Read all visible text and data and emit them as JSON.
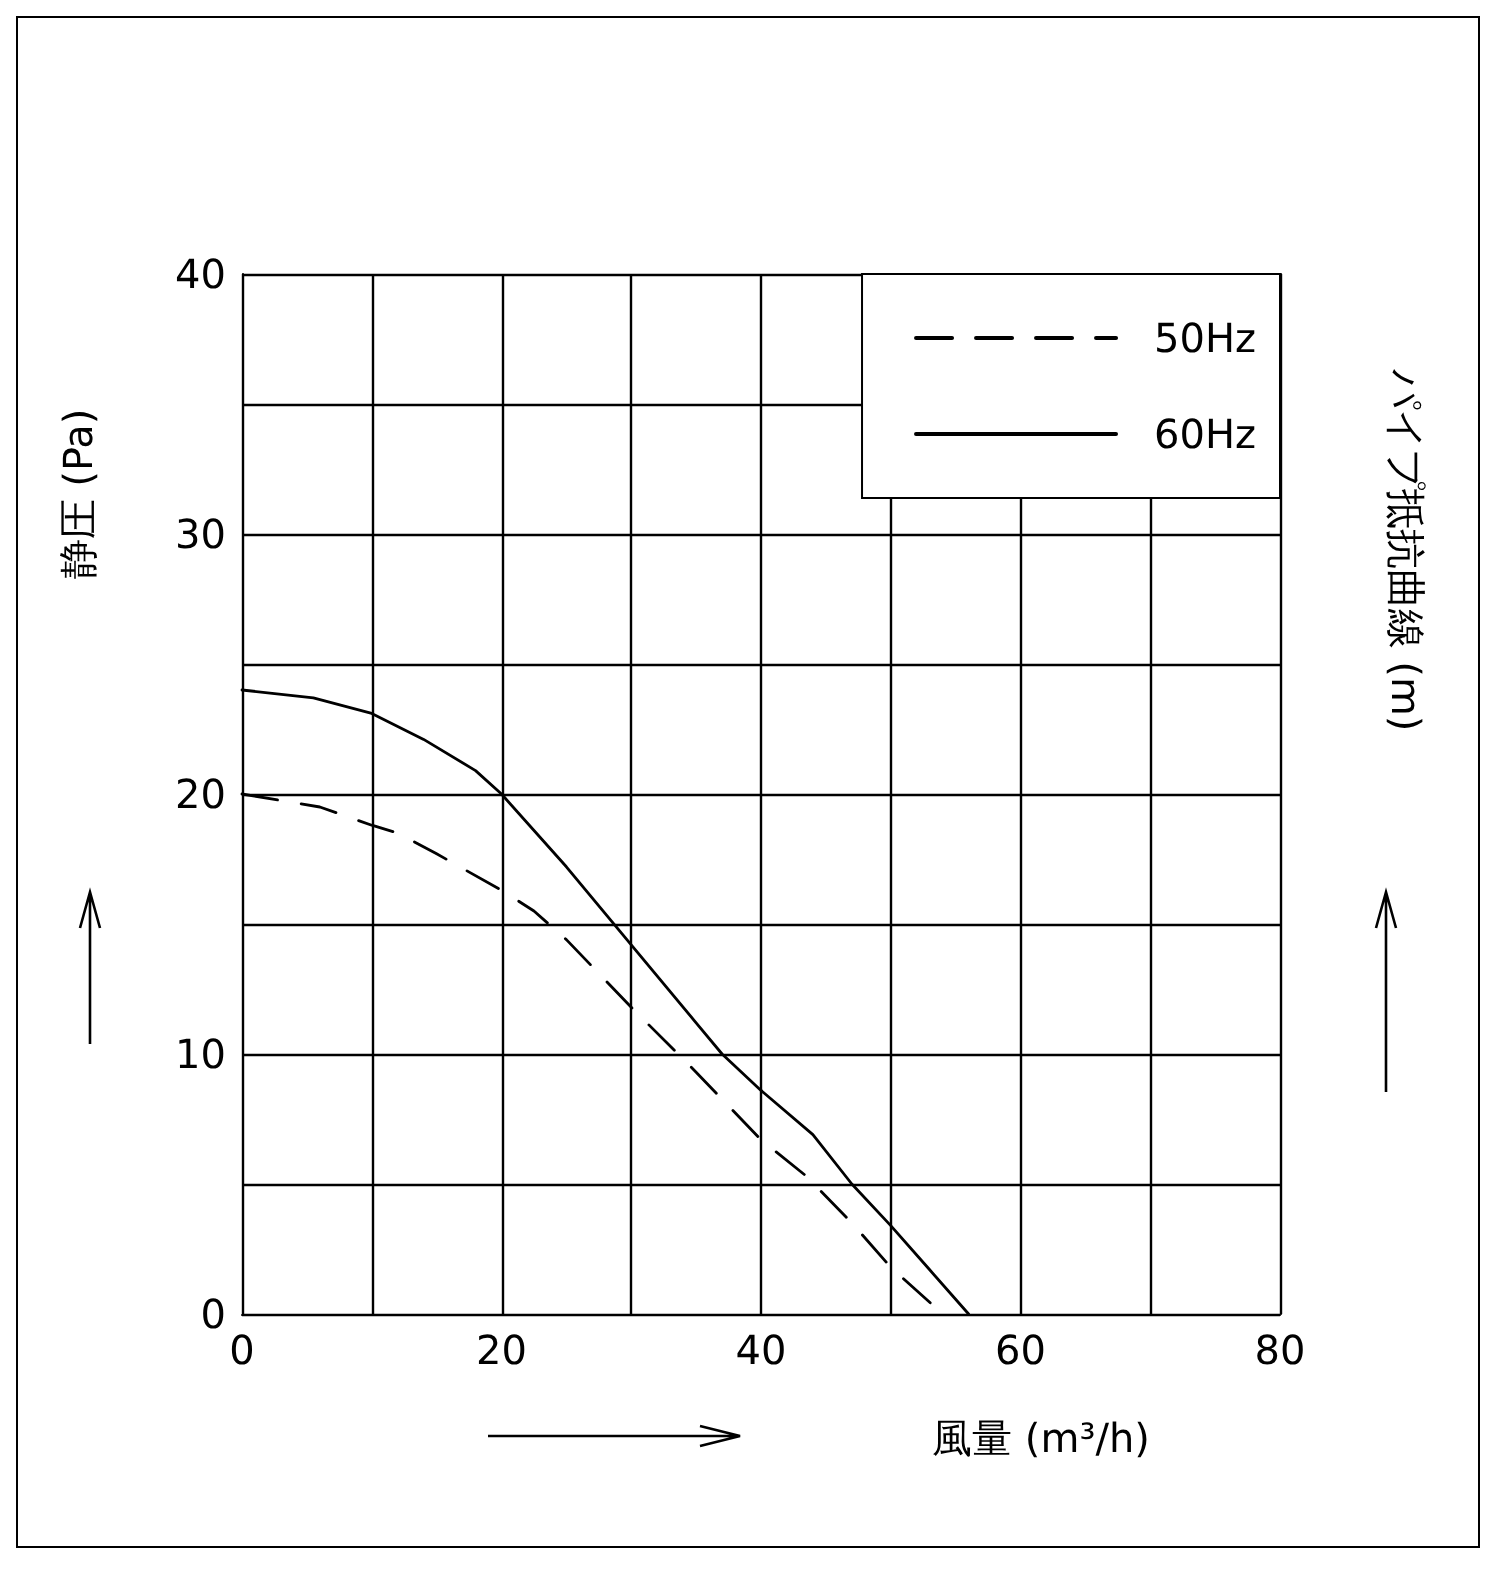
{
  "chart_data": {
    "type": "line",
    "xlabel": "風量 (m³/h)",
    "ylabel": "静圧 (Pa)",
    "y2label": "パイプ抵抗曲線 (m)",
    "xlim": [
      0,
      80
    ],
    "xticks": [
      0,
      {
        "value": 10,
        "label": null
      },
      20,
      {
        "value": 30,
        "label": null
      },
      40,
      {
        "value": 50,
        "label": null
      },
      60,
      {
        "value": 70,
        "label": null
      },
      80
    ],
    "ylim": [
      0,
      40
    ],
    "yticks": [
      0,
      {
        "value": 5,
        "label": null
      },
      10,
      {
        "value": 15,
        "label": null
      },
      20,
      {
        "value": 25,
        "label": null
      },
      30,
      {
        "value": 35,
        "label": null
      },
      40
    ],
    "grid": true,
    "legend": "top right",
    "marker": "none",
    "series": [
      {
        "name": "50Hz",
        "color": "#000000",
        "line_style": "dashed",
        "x": [
          0,
          6,
          10,
          12,
          15,
          20,
          22.5,
          25,
          30,
          35,
          40,
          43.5,
          47,
          50,
          54
        ],
        "values": [
          20,
          19.5,
          18.8,
          18.5,
          17.7,
          16.3,
          15.5,
          14.4,
          11.8,
          9.3,
          6.7,
          5.3,
          3.5,
          1.8,
          0
        ]
      },
      {
        "name": "60Hz",
        "color": "#000000",
        "line_style": "solid",
        "x": [
          0,
          5.5,
          10,
          14,
          18,
          20,
          25,
          30,
          35,
          37,
          40,
          44,
          47,
          50,
          53,
          56
        ],
        "values": [
          24,
          23.7,
          23.1,
          22.1,
          20.9,
          20,
          17.2,
          14.2,
          11.2,
          10,
          8.6,
          6.9,
          5,
          3.4,
          1.7,
          0
        ]
      }
    ]
  }
}
